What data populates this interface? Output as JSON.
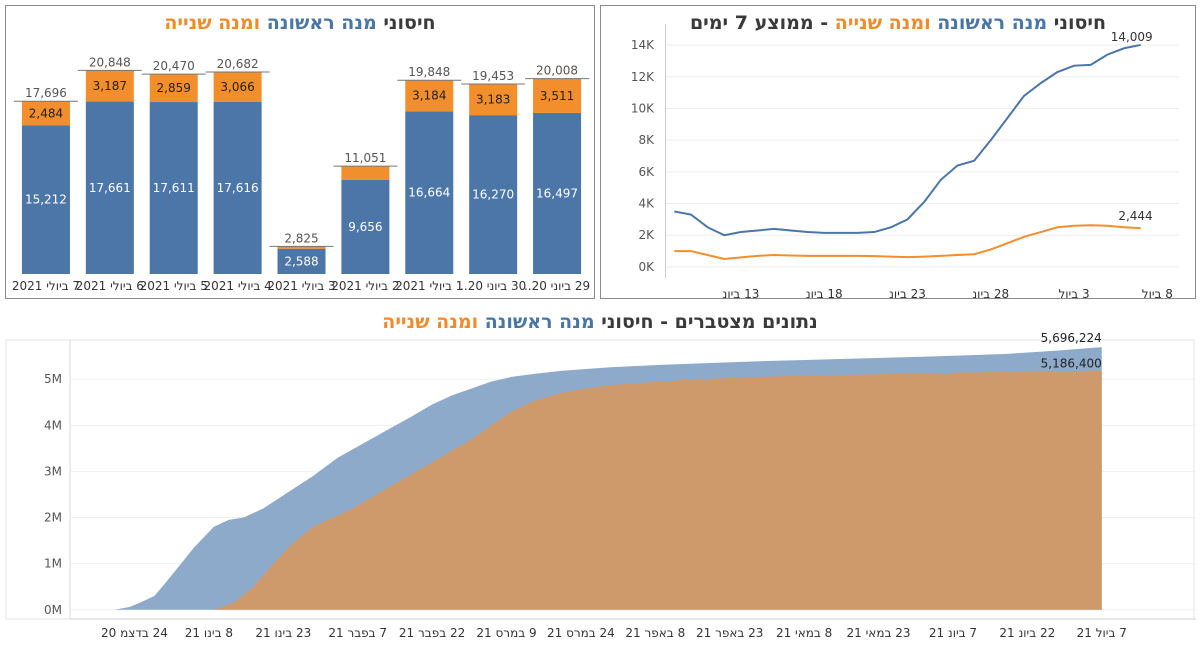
{
  "colors": {
    "first": "#4b76a7",
    "second": "#f28e2b",
    "area_first": "#8eaacb",
    "area_second": "#cf9a6b",
    "title_dark": "#3a3a3a"
  },
  "titles": {
    "bars": {
      "p1": "חיסוני ",
      "p2": "מנה ראשונה ",
      "p3": "ומנה שנייה"
    },
    "line": {
      "p1": "חיסוני ",
      "p2": "מנה ראשונה ",
      "p3": "ומנה שנייה",
      "p4": " - ממוצע 7 ימים"
    },
    "area": {
      "p1": "נתונים מצטברים - חיסוני ",
      "p2": "מנה ראשונה ",
      "p3": "ומנה שנייה"
    }
  },
  "chart_data": [
    {
      "id": "daily-bars",
      "type": "bar",
      "stacked": true,
      "categories": [
        "29 ביוני 20..",
        "30 ביוני 20..",
        "1 ביולי 2021",
        "2 ביולי 2021",
        "3 ביולי 2021",
        "4 ביולי 2021",
        "5 ביולי 2021",
        "6 ביולי 2021",
        "7 ביולי 2021"
      ],
      "series": [
        {
          "name": "מנה ראשונה",
          "values": [
            16497,
            16270,
            16664,
            9656,
            2588,
            17616,
            17611,
            17661,
            15212
          ],
          "labels": [
            "16,497",
            "16,270",
            "16,664",
            "9,656",
            "2,588",
            "17,616",
            "17,611",
            "17,661",
            "15,212"
          ]
        },
        {
          "name": "מנה שנייה",
          "values": [
            3511,
            3183,
            3184,
            1395,
            237,
            3066,
            2859,
            3187,
            2484
          ],
          "labels": [
            "3,511",
            "3,183",
            "3,184",
            "",
            "",
            "3,066",
            "2,859",
            "3,187",
            "2,484"
          ]
        }
      ],
      "totals": [
        "20,008",
        "19,453",
        "19,848",
        "11,051",
        "2,825",
        "20,682",
        "20,470",
        "20,848",
        "17,696"
      ],
      "ylim": [
        0,
        23000
      ],
      "direction": "rtl"
    },
    {
      "id": "moving-average",
      "type": "line",
      "x_ticks": [
        "8 ביול",
        "3 ביול",
        "28 ביונ",
        "23 ביונ",
        "18 ביונ",
        "13 ביונ"
      ],
      "x_tick_days": [
        39,
        34,
        29,
        24,
        19,
        14
      ],
      "y_ticks": [
        "0K",
        "2K",
        "4K",
        "6K",
        "8K",
        "10K",
        "12K",
        "14K"
      ],
      "y_tick_values": [
        0,
        2000,
        4000,
        6000,
        8000,
        10000,
        12000,
        14000
      ],
      "xlim": [
        9.5,
        40.3
      ],
      "ylim": [
        -700,
        14700
      ],
      "series": [
        {
          "name": "מנה ראשונה",
          "end_label": "14,009",
          "x": [
            10,
            11,
            12,
            13,
            14,
            15,
            16,
            17,
            18,
            19,
            20,
            21,
            22,
            23,
            24,
            25,
            26,
            27,
            28,
            29,
            30,
            31,
            32,
            33,
            34,
            35,
            36,
            37,
            38
          ],
          "y": [
            3500,
            3300,
            2500,
            2000,
            2200,
            2300,
            2400,
            2300,
            2200,
            2150,
            2150,
            2150,
            2200,
            2500,
            3000,
            4100,
            5500,
            6400,
            6700,
            8000,
            9400,
            10800,
            11600,
            12300,
            12700,
            12750,
            13400,
            13800,
            14009
          ]
        },
        {
          "name": "מנה שנייה",
          "end_label": "2,444",
          "x": [
            10,
            11,
            12,
            13,
            14,
            15,
            16,
            17,
            18,
            19,
            20,
            21,
            22,
            23,
            24,
            25,
            26,
            27,
            28,
            29,
            30,
            31,
            32,
            33,
            34,
            35,
            36,
            37,
            38
          ],
          "y": [
            1000,
            1000,
            750,
            500,
            600,
            700,
            750,
            720,
            700,
            700,
            700,
            700,
            680,
            650,
            620,
            650,
            700,
            750,
            800,
            1100,
            1500,
            1900,
            2200,
            2500,
            2600,
            2630,
            2600,
            2500,
            2444
          ]
        }
      ]
    },
    {
      "id": "cumulative",
      "type": "area",
      "x_ticks": [
        "7 ביול 21",
        "22 ביונ 21",
        "7 ביונ 21",
        "23 במאי 21",
        "8 במאי 21",
        "23 באפר 21",
        "8 באפר 21",
        "24 במרס 21",
        "9 במרס 21",
        "22 בפבר 21",
        "7 בפבר 21",
        "23 בינו 21",
        "8 בינו 21",
        "24 בדצמ 20"
      ],
      "x_tick_days": [
        199,
        184,
        169,
        154,
        139,
        124,
        109,
        94,
        79,
        64,
        49,
        34,
        19,
        4
      ],
      "y_ticks": [
        "0M",
        "1M",
        "2M",
        "3M",
        "4M",
        "5M"
      ],
      "y_tick_values": [
        0,
        1000000,
        2000000,
        3000000,
        4000000,
        5000000
      ],
      "xlim": [
        -9,
        218
      ],
      "ylim": [
        -200000,
        5850000
      ],
      "series": [
        {
          "name": "מנה ראשונה",
          "end_label": "5,696,224",
          "x": [
            0,
            3,
            5,
            8,
            10,
            13,
            16,
            20,
            23,
            26,
            30,
            35,
            40,
            45,
            50,
            55,
            60,
            64,
            68,
            72,
            76,
            80,
            85,
            90,
            95,
            100,
            110,
            120,
            130,
            140,
            150,
            160,
            170,
            180,
            190,
            199
          ],
          "y": [
            0,
            60000,
            150000,
            300000,
            550000,
            950000,
            1350000,
            1800000,
            1950000,
            2000000,
            2200000,
            2550000,
            2900000,
            3300000,
            3600000,
            3900000,
            4200000,
            4450000,
            4650000,
            4800000,
            4950000,
            5050000,
            5120000,
            5180000,
            5220000,
            5260000,
            5310000,
            5350000,
            5390000,
            5420000,
            5450000,
            5480000,
            5510000,
            5550000,
            5620000,
            5696224
          ]
        },
        {
          "name": "מנה שנייה",
          "end_label": "5,186,400",
          "x": [
            20,
            24,
            28,
            32,
            36,
            40,
            44,
            48,
            52,
            56,
            60,
            64,
            68,
            72,
            76,
            80,
            85,
            90,
            95,
            100,
            110,
            120,
            130,
            140,
            150,
            160,
            170,
            180,
            190,
            199
          ],
          "y": [
            0,
            150000,
            500000,
            1000000,
            1450000,
            1800000,
            2000000,
            2200000,
            2450000,
            2700000,
            2950000,
            3200000,
            3450000,
            3700000,
            4000000,
            4300000,
            4550000,
            4700000,
            4800000,
            4870000,
            4950000,
            5010000,
            5050000,
            5080000,
            5100000,
            5120000,
            5140000,
            5160000,
            5175000,
            5186400
          ]
        }
      ]
    }
  ]
}
